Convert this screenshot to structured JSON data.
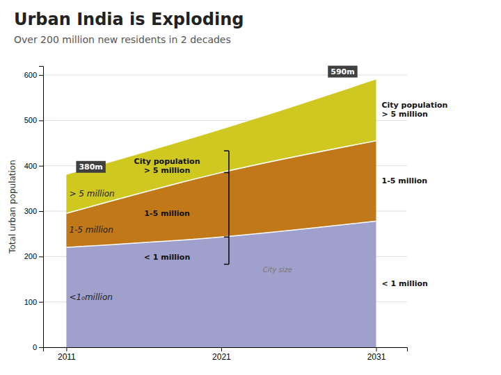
{
  "chart_data": {
    "type": "area",
    "title": "Urban India is Exploding",
    "subtitle": "Over 200 million new residents in 2 decades",
    "ylabel": "Total urban population",
    "x": [
      2011,
      2021,
      2031
    ],
    "xlim": [
      2009.5,
      2033
    ],
    "xticks": [
      2011,
      2021,
      2031
    ],
    "ylim": [
      0,
      620
    ],
    "yticks": [
      0,
      100,
      200,
      300,
      400,
      500,
      600
    ],
    "grid": true,
    "series": [
      {
        "name": "< 1 million",
        "color": "#a0a0cc",
        "values": [
          220,
          243,
          278
        ]
      },
      {
        "name": "1-5 million",
        "color": "#c07818",
        "values": [
          295,
          385,
          455
        ]
      },
      {
        "name": "City population\n> 5 million",
        "color": "#cec820",
        "values": [
          380,
          480,
          590
        ]
      }
    ],
    "annotations": [
      "380m",
      "590m",
      "> 5 million",
      "1-5 million",
      "<1₀million",
      "City size"
    ]
  }
}
